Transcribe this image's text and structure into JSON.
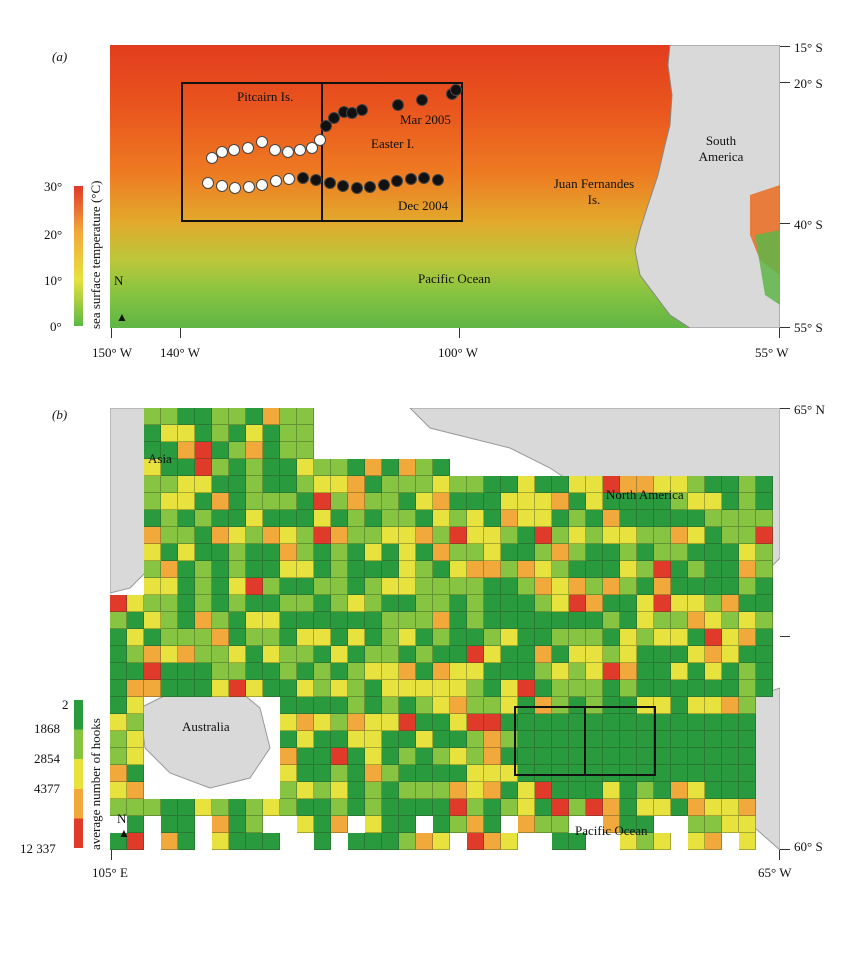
{
  "panel_a": {
    "label": "(a)",
    "places": {
      "pitcairn": "Pitcairn Is.",
      "easter": "Easter I.",
      "mar2005": "Mar 2005",
      "dec2004": "Dec 2004",
      "south_america": "South America",
      "juan_fernandes": "Juan Fernandes Is.",
      "pacific": "Pacific Ocean",
      "north": "N"
    },
    "lat_ticks": [
      "15° S",
      "20° S",
      "40° S",
      "55° S"
    ],
    "lon_ticks": [
      "150° W",
      "140° W",
      "100° W",
      "55° W"
    ],
    "colorbar": {
      "title": "sea surface temperature (°C)",
      "ticks": [
        "30°",
        "20°",
        "10°",
        "0°"
      ],
      "colors": [
        "#e03a2a",
        "#f2a93b",
        "#e7e23d",
        "#5cb945"
      ]
    }
  },
  "panel_b": {
    "label": "(b)",
    "places": {
      "asia": "Asia",
      "north_america": "North America",
      "australia": "Australia",
      "pacific": "Pacific Ocean",
      "north": "N"
    },
    "lat_ticks": [
      "65° N",
      "60° S"
    ],
    "lon_ticks": [
      "105° E",
      "65° W"
    ],
    "colorbar": {
      "title": "average number of hooks",
      "ticks": [
        "2",
        "1868",
        "2854",
        "4377",
        "12 337"
      ],
      "colors": [
        "#2a9a3f",
        "#86c441",
        "#e7e23d",
        "#f2a93b",
        "#e03a2a"
      ]
    }
  }
}
